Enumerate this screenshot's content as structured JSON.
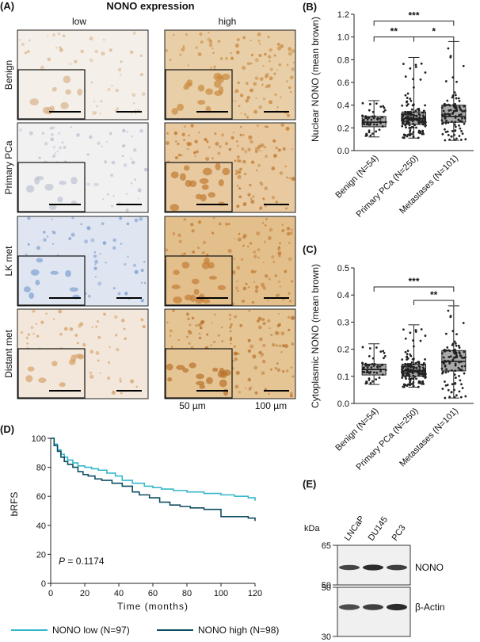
{
  "panel_a": {
    "label": "(A)",
    "title": "NONO expression",
    "col_low": "low",
    "col_high": "high",
    "rows": [
      "Benign",
      "Primary PCa",
      "LK met",
      "Distant met"
    ],
    "scale_small": "50 µm",
    "scale_large": "100 µm",
    "tissue": [
      {
        "low": "#f4efe8",
        "high": "#e9cfa8",
        "low_spot": "#d9b48c",
        "high_spot": "#c98a3f"
      },
      {
        "low": "#f2f1f2",
        "high": "#e8c9a0",
        "low_spot": "#bcc3d3",
        "high_spot": "#c07a30"
      },
      {
        "low": "#dfe6f2",
        "high": "#e3bf8c",
        "low_spot": "#7f9fd0",
        "high_spot": "#c37d35"
      },
      {
        "low": "#f2e7da",
        "high": "#e6c595",
        "low_spot": "#d7a26a",
        "high_spot": "#b8722b"
      }
    ]
  },
  "panel_e": {
    "label": "(E)",
    "kda_label": "kDa",
    "lanes": [
      "LNCaP",
      "DU145",
      "PC3"
    ],
    "markers_top": [
      "65",
      "50"
    ],
    "markers_bottom": [
      "50",
      "30"
    ],
    "band_top": "NONO",
    "band_bottom": "β-Actin",
    "intensity_top": [
      0.75,
      0.95,
      0.8
    ],
    "intensity_bottom": [
      0.7,
      0.8,
      0.95
    ]
  },
  "chart_data": [
    {
      "panel": "(B)",
      "type": "box",
      "ylabel": "Nuclear NONO (mean brown)",
      "ylim": [
        0.0,
        1.2
      ],
      "yticks": [
        "0.0",
        "0.2",
        "0.4",
        "0.6",
        "0.8",
        "1.0",
        "1.2"
      ],
      "tickvals": [
        0.0,
        0.2,
        0.4,
        0.6,
        0.8,
        1.0,
        1.2
      ],
      "categories": [
        "Benign (N=54)",
        "Primary PCa (N=250)",
        "Metastases (N=101)"
      ],
      "boxes": [
        {
          "min": 0.12,
          "q1": 0.21,
          "median": 0.25,
          "q3": 0.3,
          "max": 0.44,
          "n": 54
        },
        {
          "min": 0.11,
          "q1": 0.23,
          "median": 0.28,
          "q3": 0.34,
          "max": 0.82,
          "n": 250
        },
        {
          "min": 0.09,
          "q1": 0.25,
          "median": 0.3,
          "q3": 0.4,
          "max": 0.96,
          "n": 101
        }
      ],
      "significance": [
        {
          "from": 0,
          "to": 2,
          "y": 1.14,
          "label": "***"
        },
        {
          "from": 0,
          "to": 1,
          "y": 1.0,
          "label": "**"
        },
        {
          "from": 1,
          "to": 2,
          "y": 1.0,
          "label": "*"
        }
      ]
    },
    {
      "panel": "(C)",
      "type": "box",
      "ylabel": "Cytoplasmic NONO (mean brown)",
      "ylim": [
        0.0,
        0.5
      ],
      "yticks": [
        "0.0",
        "0.1",
        "0.2",
        "0.3",
        "0.4",
        "0.5"
      ],
      "tickvals": [
        0.0,
        0.1,
        0.2,
        0.3,
        0.4,
        0.5
      ],
      "categories": [
        "Benign (N=54)",
        "Primary PCa (N=250)",
        "Metastases (N=101)"
      ],
      "boxes": [
        {
          "min": 0.07,
          "q1": 0.105,
          "median": 0.125,
          "q3": 0.145,
          "max": 0.22,
          "n": 54
        },
        {
          "min": 0.06,
          "q1": 0.1,
          "median": 0.12,
          "q3": 0.145,
          "max": 0.29,
          "n": 250
        },
        {
          "min": 0.02,
          "q1": 0.12,
          "median": 0.155,
          "q3": 0.195,
          "max": 0.36,
          "n": 101
        }
      ],
      "significance": [
        {
          "from": 0,
          "to": 2,
          "y": 0.43,
          "label": "***"
        },
        {
          "from": 1,
          "to": 2,
          "y": 0.38,
          "label": "**"
        }
      ]
    },
    {
      "panel": "(D)",
      "type": "line",
      "subtype": "kaplan-meier",
      "ylabel": "bRFS",
      "xlabel": "Time (months)",
      "xlim": [
        0,
        120
      ],
      "ylim": [
        0,
        100
      ],
      "xticks": [
        "0",
        "20",
        "40",
        "60",
        "80",
        "100",
        "120"
      ],
      "xtickvals": [
        0,
        20,
        40,
        60,
        80,
        100,
        120
      ],
      "yticks": [
        "0",
        "20",
        "40",
        "60",
        "80",
        "100"
      ],
      "ytickvals": [
        0,
        20,
        40,
        60,
        80,
        100
      ],
      "annotation_p": "P",
      "annotation_value": " = 0.1174",
      "series": [
        {
          "name": "NONO low (N=97)",
          "color": "#35b7cc",
          "x": [
            0,
            2,
            4,
            6,
            8,
            10,
            13,
            16,
            20,
            24,
            28,
            33,
            38,
            42,
            48,
            55,
            60,
            65,
            72,
            80,
            90,
            100,
            108,
            112,
            116,
            120
          ],
          "y": [
            100,
            96,
            92,
            89,
            87,
            85,
            83,
            81,
            80,
            79,
            78,
            76,
            74,
            71,
            69,
            67,
            66,
            65,
            64,
            63,
            62,
            61,
            60,
            60,
            59,
            57
          ]
        },
        {
          "name": "NONO high (N=98)",
          "color": "#0e4e62",
          "x": [
            0,
            2,
            4,
            6,
            8,
            10,
            13,
            16,
            19,
            22,
            26,
            30,
            36,
            42,
            48,
            52,
            58,
            64,
            70,
            76,
            82,
            90,
            100,
            110,
            116,
            120
          ],
          "y": [
            100,
            95,
            91,
            87,
            84,
            82,
            80,
            77,
            75,
            74,
            72,
            71,
            69,
            67,
            63,
            61,
            59,
            56,
            54,
            53,
            52,
            51,
            46,
            46,
            45,
            43
          ]
        }
      ]
    }
  ]
}
